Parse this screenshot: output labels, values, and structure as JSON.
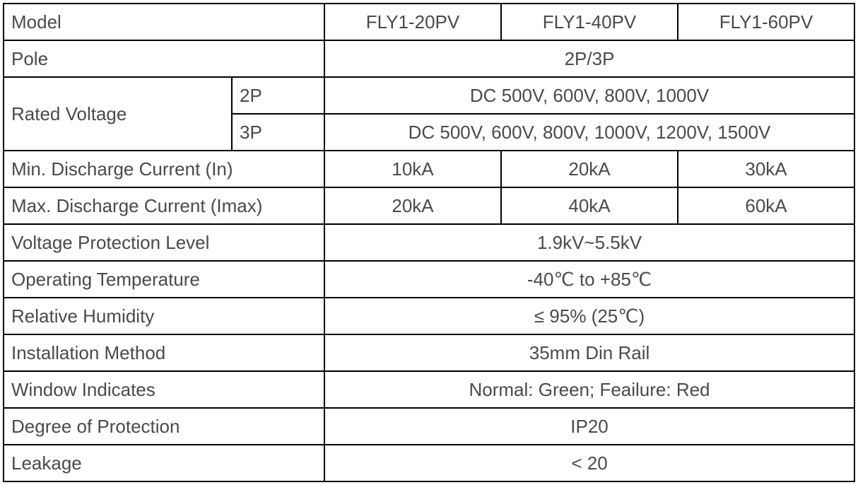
{
  "table": {
    "border_color": "#000000",
    "text_color": "#4a4a4a",
    "background_color": "#ffffff",
    "font_size": 26,
    "columns": {
      "label_main_width": 323,
      "label_sub_width": 131,
      "value_width": 250
    },
    "header": {
      "label": "Model",
      "models": [
        "FLY1-20PV",
        "FLY1-40PV",
        "FLY1-60PV"
      ]
    },
    "rows": {
      "pole": {
        "label": "Pole",
        "value": "2P/3P"
      },
      "rated_voltage": {
        "label": "Rated Voltage",
        "sub": [
          {
            "label": "2P",
            "value": "DC 500V, 600V, 800V, 1000V"
          },
          {
            "label": "3P",
            "value": "DC 500V, 600V, 800V, 1000V, 1200V, 1500V"
          }
        ]
      },
      "min_discharge": {
        "label": "Min. Discharge Current (In)",
        "values": [
          "10kA",
          "20kA",
          "30kA"
        ]
      },
      "max_discharge": {
        "label": "Max. Discharge Current (Imax)",
        "values": [
          "20kA",
          "40kA",
          "60kA"
        ]
      },
      "voltage_protection": {
        "label": "Voltage Protection Level",
        "value": "1.9kV~5.5kV"
      },
      "operating_temp": {
        "label": "Operating Temperature",
        "value": "-40℃ to +85℃"
      },
      "humidity": {
        "label": "Relative Humidity",
        "value": "≤ 95% (25℃)"
      },
      "install_method": {
        "label": "Installation Method",
        "value": "35mm Din Rail"
      },
      "window_indicates": {
        "label": "Window Indicates",
        "value": "Normal: Green; Feailure: Red"
      },
      "protection_degree": {
        "label": "Degree of Protection",
        "value": "IP20"
      },
      "leakage": {
        "label": "Leakage",
        "value": "< 20"
      }
    }
  }
}
